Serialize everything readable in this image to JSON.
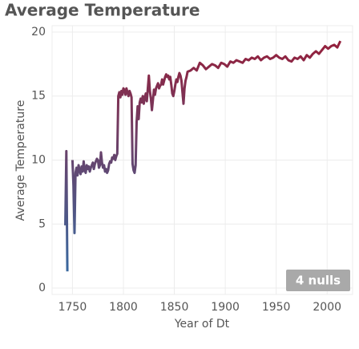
{
  "chart_data": {
    "type": "line",
    "title": "Average Temperature",
    "x_label": "Year of Dt",
    "y_label": "Average Temperature",
    "annotation": "4 nulls",
    "xlim": [
      1730,
      2025
    ],
    "ylim": [
      -0.5,
      20.5
    ],
    "xticks": [
      1750,
      1800,
      1850,
      1900,
      1950,
      2000
    ],
    "yticks": [
      0,
      5,
      10,
      15,
      20
    ],
    "grid": true,
    "color_scale": {
      "low": "#2f6fa8",
      "high": "#9b1b35"
    },
    "x": [
      1743,
      1744,
      1745,
      1747,
      1750,
      1751,
      1752,
      1753,
      1754,
      1755,
      1756,
      1757,
      1758,
      1759,
      1760,
      1761,
      1762,
      1763,
      1764,
      1765,
      1766,
      1767,
      1768,
      1769,
      1770,
      1771,
      1772,
      1773,
      1774,
      1775,
      1776,
      1777,
      1778,
      1779,
      1780,
      1781,
      1782,
      1783,
      1784,
      1785,
      1786,
      1787,
      1788,
      1789,
      1790,
      1791,
      1792,
      1793,
      1794,
      1795,
      1796,
      1797,
      1798,
      1799,
      1800,
      1801,
      1802,
      1803,
      1804,
      1805,
      1806,
      1807,
      1808,
      1809,
      1810,
      1811,
      1812,
      1813,
      1814,
      1815,
      1816,
      1817,
      1818,
      1819,
      1820,
      1821,
      1822,
      1823,
      1824,
      1825,
      1826,
      1827,
      1828,
      1829,
      1830,
      1831,
      1832,
      1833,
      1834,
      1835,
      1836,
      1837,
      1838,
      1839,
      1840,
      1841,
      1842,
      1843,
      1844,
      1845,
      1846,
      1847,
      1848,
      1849,
      1850,
      1851,
      1852,
      1853,
      1854,
      1855,
      1856,
      1857,
      1858,
      1859,
      1860,
      1861,
      1862,
      1863,
      1866,
      1869,
      1872,
      1875,
      1878,
      1881,
      1884,
      1887,
      1890,
      1893,
      1896,
      1899,
      1902,
      1905,
      1908,
      1911,
      1914,
      1917,
      1920,
      1923,
      1926,
      1929,
      1932,
      1935,
      1938,
      1941,
      1944,
      1947,
      1950,
      1953,
      1956,
      1959,
      1962,
      1965,
      1968,
      1971,
      1974,
      1977,
      1980,
      1983,
      1986,
      1989,
      1992,
      1995,
      1998,
      2001,
      2004,
      2007,
      2010,
      2013
    ],
    "values": [
      4.9,
      10.7,
      1.3,
      null,
      10.0,
      8.0,
      4.3,
      9.0,
      9.4,
      8.8,
      9.6,
      9.2,
      8.9,
      9.5,
      9.1,
      9.9,
      9.2,
      9.0,
      9.6,
      9.3,
      9.5,
      9.1,
      9.4,
      9.6,
      9.8,
      9.3,
      9.7,
      9.9,
      10.1,
      10.0,
      9.4,
      9.6,
      10.6,
      9.8,
      9.4,
      9.6,
      9.1,
      9.3,
      9.0,
      9.2,
      9.7,
      9.9,
      9.8,
      10.2,
      10.1,
      10.4,
      10.0,
      10.3,
      10.5,
      15.0,
      15.3,
      14.9,
      15.4,
      15.1,
      15.6,
      15.5,
      15.1,
      15.6,
      15.3,
      15.0,
      15.4,
      15.2,
      14.9,
      9.7,
      9.2,
      9.0,
      9.6,
      13.0,
      14.2,
      13.2,
      14.5,
      14.8,
      14.5,
      15.0,
      14.4,
      14.9,
      15.2,
      14.6,
      15.6,
      16.6,
      15.4,
      14.8,
      13.9,
      14.7,
      15.5,
      15.1,
      15.6,
      15.8,
      16.0,
      15.6,
      15.8,
      15.9,
      16.3,
      15.9,
      16.2,
      16.5,
      16.7,
      16.5,
      16.6,
      16.3,
      16.5,
      15.9,
      15.2,
      15.0,
      15.4,
      15.9,
      16.3,
      16.1,
      16.5,
      16.8,
      16.6,
      16.2,
      15.3,
      14.4,
      15.6,
      16.2,
      16.5,
      16.9,
      17.0,
      17.2,
      17.0,
      17.6,
      17.4,
      17.1,
      17.3,
      17.5,
      17.4,
      17.2,
      17.6,
      17.5,
      17.3,
      17.7,
      17.6,
      17.8,
      17.7,
      17.6,
      17.9,
      17.8,
      18.0,
      17.9,
      18.1,
      17.8,
      18.0,
      18.1,
      17.9,
      18.0,
      18.2,
      18.0,
      17.9,
      18.1,
      17.8,
      17.7,
      18.0,
      17.9,
      18.1,
      17.8,
      18.2,
      18.0,
      18.3,
      18.5,
      18.3,
      18.6,
      18.9,
      18.7,
      18.9,
      19.0,
      18.8,
      19.3
    ]
  }
}
